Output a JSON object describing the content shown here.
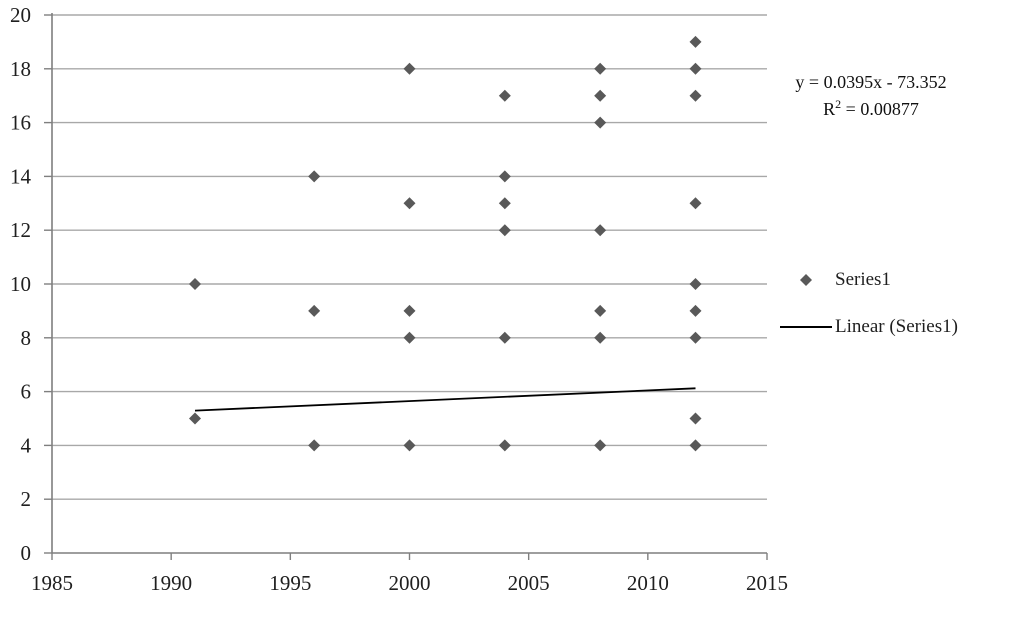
{
  "chart_data": {
    "type": "scatter",
    "title": "",
    "xlabel": "",
    "ylabel": "",
    "series": [
      {
        "name": "Series1",
        "marker": "diamond",
        "points": [
          [
            1991,
            5
          ],
          [
            1991,
            10
          ],
          [
            1996,
            4
          ],
          [
            1996,
            9
          ],
          [
            1996,
            14
          ],
          [
            2000,
            4
          ],
          [
            2000,
            8
          ],
          [
            2000,
            9
          ],
          [
            2000,
            13
          ],
          [
            2000,
            18
          ],
          [
            2004,
            4
          ],
          [
            2004,
            8
          ],
          [
            2004,
            12
          ],
          [
            2004,
            13
          ],
          [
            2004,
            14
          ],
          [
            2004,
            17
          ],
          [
            2008,
            4
          ],
          [
            2008,
            8
          ],
          [
            2008,
            9
          ],
          [
            2008,
            12
          ],
          [
            2008,
            16
          ],
          [
            2008,
            17
          ],
          [
            2008,
            18
          ],
          [
            2012,
            4
          ],
          [
            2012,
            5
          ],
          [
            2012,
            8
          ],
          [
            2012,
            9
          ],
          [
            2012,
            10
          ],
          [
            2012,
            13
          ],
          [
            2012,
            17
          ],
          [
            2012,
            18
          ],
          [
            2012,
            19
          ]
        ]
      }
    ],
    "trendline": {
      "label": "Linear (Series1)",
      "slope": 0.0395,
      "intercept": -73.352,
      "x_start": 1991,
      "x_end": 2012
    },
    "equation": {
      "line1": "y = 0.0395x - 73.352",
      "r2_base": "R",
      "r2_exp": "2",
      "r2_rest": " = 0.00877"
    },
    "axes": {
      "xlim": [
        1985,
        2015
      ],
      "ylim": [
        0,
        20
      ],
      "x_ticks": [
        1985,
        1990,
        1995,
        2000,
        2005,
        2010,
        2015
      ],
      "y_ticks": [
        0,
        2,
        4,
        6,
        8,
        10,
        12,
        14,
        16,
        18,
        20
      ],
      "grid": "horizontal-major"
    },
    "legend": {
      "position": "right",
      "items": [
        {
          "label": "Series1",
          "marker": "diamond"
        },
        {
          "label": "Linear (Series1)",
          "marker": "line"
        }
      ]
    },
    "colors": {
      "marker": "#595959",
      "gridline": "#a8a8a8",
      "axis": "#7f7f7f",
      "trendline": "#000000",
      "text": "#1f1f1f"
    }
  }
}
